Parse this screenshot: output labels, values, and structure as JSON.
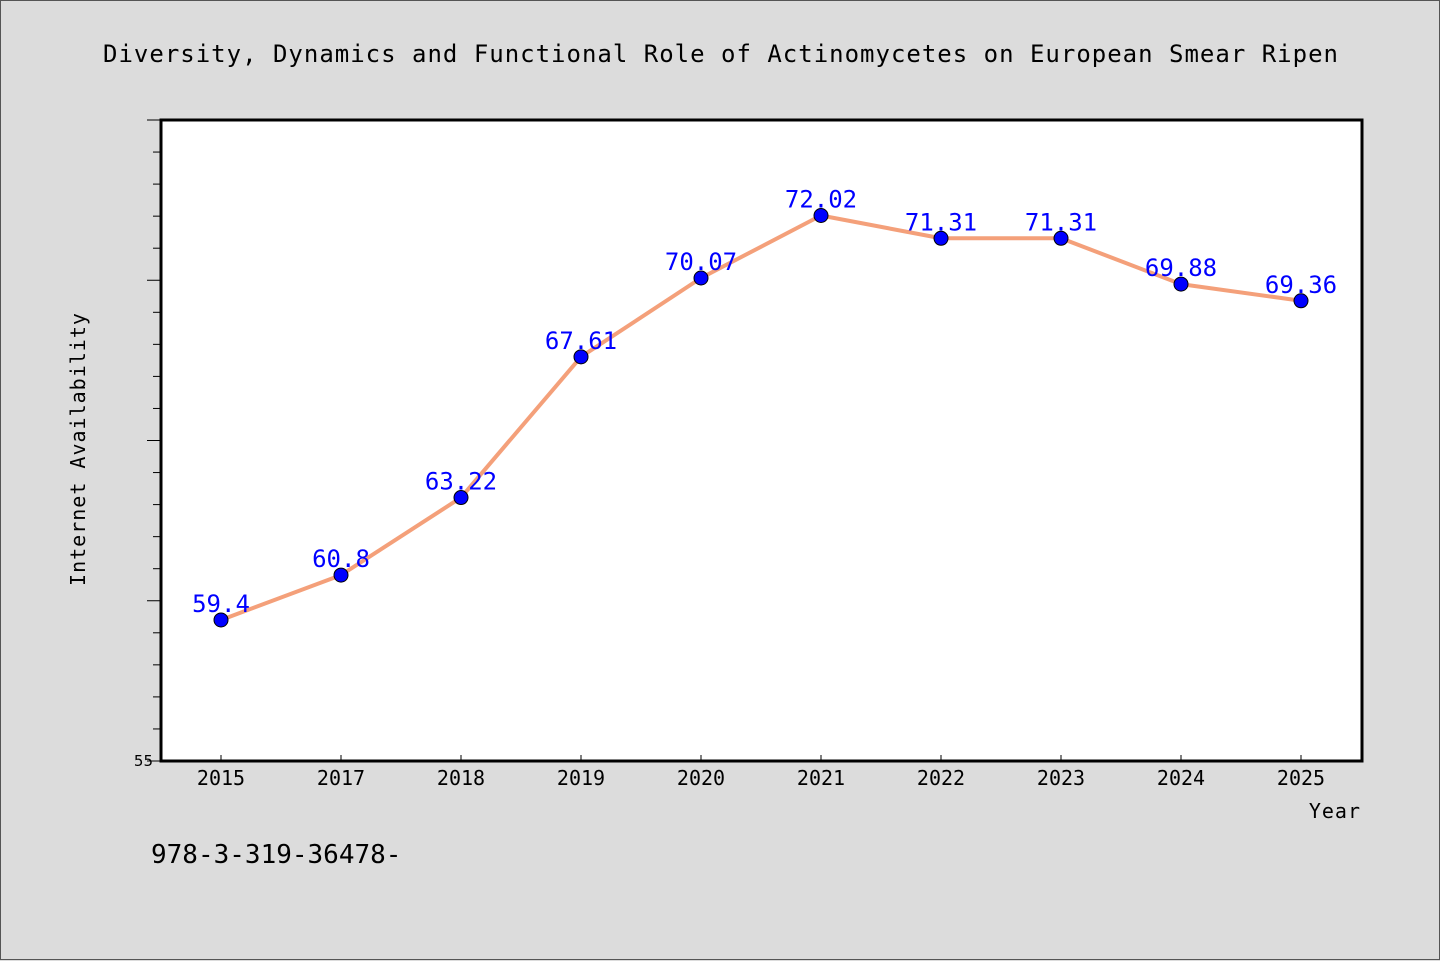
{
  "chart_data": {
    "type": "line",
    "title": "Diversity, Dynamics and Functional Role of Actinomycetes on European Smear Ripen",
    "xlabel": "Year",
    "ylabel": "Internet Availability",
    "categories": [
      "2015",
      "2017",
      "2018",
      "2019",
      "2020",
      "2021",
      "2022",
      "2023",
      "2024",
      "2025"
    ],
    "series": [
      {
        "values": [
          59.4,
          60.8,
          63.22,
          67.61,
          70.07,
          72.02,
          71.31,
          71.31,
          69.88,
          69.36
        ],
        "labels": [
          "59.4",
          "60.8",
          "63.22",
          "67.61",
          "70.07",
          "72.02",
          "71.31",
          "71.31",
          "69.88",
          "69.36"
        ],
        "line_color": "#f4a07a",
        "marker_color": "#0000ff"
      }
    ],
    "ylim": [
      55,
      75
    ],
    "ytick_labels": [
      "55"
    ],
    "grid": false,
    "legend": "none",
    "background": "#dcdcdc",
    "plot_background": "#ffffff"
  },
  "footnote": "978-3-319-36478-"
}
